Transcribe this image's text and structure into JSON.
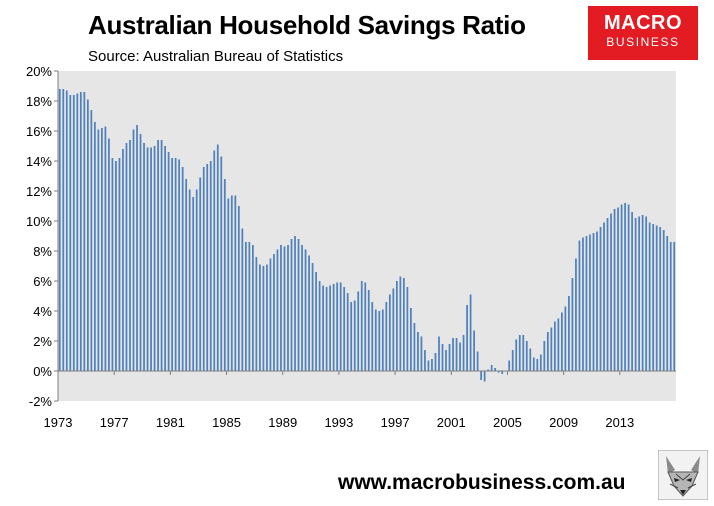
{
  "header": {
    "title": "Australian Household Savings Ratio",
    "subtitle": "Source: Australian Bureau of Statistics"
  },
  "logo": {
    "line1": "MACRO",
    "line2": "BUSINESS",
    "bg_color": "#e31b23"
  },
  "footer": {
    "url": "www.macrobusiness.com.au"
  },
  "icons": {
    "mascot": "fox-mascot-icon"
  },
  "chart_data": {
    "type": "bar",
    "title": "Australian Household Savings Ratio",
    "subtitle": "Source: Australian Bureau of Statistics",
    "xlabel": "",
    "ylabel": "",
    "ylim": [
      -2,
      20
    ],
    "yticks": [
      "-2%",
      "0%",
      "2%",
      "4%",
      "6%",
      "8%",
      "10%",
      "12%",
      "14%",
      "16%",
      "18%",
      "20%"
    ],
    "xticks": [
      "1973",
      "1977",
      "1981",
      "1985",
      "1989",
      "1993",
      "1997",
      "2001",
      "2005",
      "2009",
      "2013"
    ],
    "x_start": "1973 Q1",
    "frequency": "quarterly",
    "grid": false,
    "plot_background": "#e6e6e6",
    "bar_color": "#4f81bd",
    "annual_values": [
      [
        18.8,
        18.8,
        18.7,
        18.4
      ],
      [
        18.4,
        18.5,
        18.6,
        18.6
      ],
      [
        18.1,
        17.4,
        16.6,
        16.1
      ],
      [
        16.2,
        16.3,
        15.5,
        14.2
      ],
      [
        14.0,
        14.2,
        14.8,
        15.2
      ],
      [
        15.4,
        16.1,
        16.4,
        15.8
      ],
      [
        15.2,
        14.9,
        14.9,
        15.0
      ],
      [
        15.4,
        15.4,
        15.0,
        14.6
      ],
      [
        14.2,
        14.2,
        14.1,
        13.6
      ],
      [
        12.8,
        12.1,
        11.6,
        12.1
      ],
      [
        12.9,
        13.6,
        13.8,
        14.0
      ],
      [
        14.7,
        15.1,
        14.3,
        12.8
      ],
      [
        11.5,
        11.7,
        11.7,
        11.0
      ],
      [
        9.5,
        8.6,
        8.6,
        8.4
      ],
      [
        7.6,
        7.1,
        7.0,
        7.1
      ],
      [
        7.5,
        7.8,
        8.1,
        8.4
      ],
      [
        8.3,
        8.4,
        8.8,
        9.0
      ],
      [
        8.8,
        8.4,
        8.1,
        7.7
      ],
      [
        7.2,
        6.6,
        6.0,
        5.7
      ],
      [
        5.6,
        5.7,
        5.8,
        5.9
      ],
      [
        5.9,
        5.6,
        5.2,
        4.6
      ],
      [
        4.7,
        5.3,
        6.0,
        5.9
      ],
      [
        5.4,
        4.6,
        4.1,
        4.0
      ],
      [
        4.1,
        4.6,
        5.1,
        5.5
      ],
      [
        6.0,
        6.3,
        6.2,
        5.6
      ],
      [
        4.2,
        3.2,
        2.6,
        2.3
      ],
      [
        1.4,
        0.7,
        0.8,
        1.2
      ],
      [
        2.3,
        1.8,
        1.4,
        1.8
      ],
      [
        2.2,
        2.2,
        1.9,
        2.4
      ],
      [
        4.4,
        5.1,
        2.7,
        1.3
      ],
      [
        -0.6,
        -0.7,
        0.1,
        0.4
      ],
      [
        0.2,
        -0.1,
        -0.2,
        0.0
      ],
      [
        0.7,
        1.4,
        2.1,
        2.4
      ],
      [
        2.4,
        2.0,
        1.5,
        0.9
      ],
      [
        0.8,
        1.1,
        2.0,
        2.6
      ],
      [
        2.9,
        3.3,
        3.5,
        3.9
      ],
      [
        4.3,
        5.0,
        6.2,
        7.5
      ],
      [
        8.7,
        8.9,
        9.0,
        9.1
      ],
      [
        9.2,
        9.3,
        9.6,
        9.9
      ],
      [
        10.2,
        10.5,
        10.8,
        10.9
      ],
      [
        11.1,
        11.2,
        11.1,
        10.6
      ],
      [
        10.2,
        10.3,
        10.4,
        10.3
      ],
      [
        9.9,
        9.8,
        9.7,
        9.6
      ],
      [
        9.4,
        9.0,
        8.6,
        8.6
      ]
    ]
  }
}
